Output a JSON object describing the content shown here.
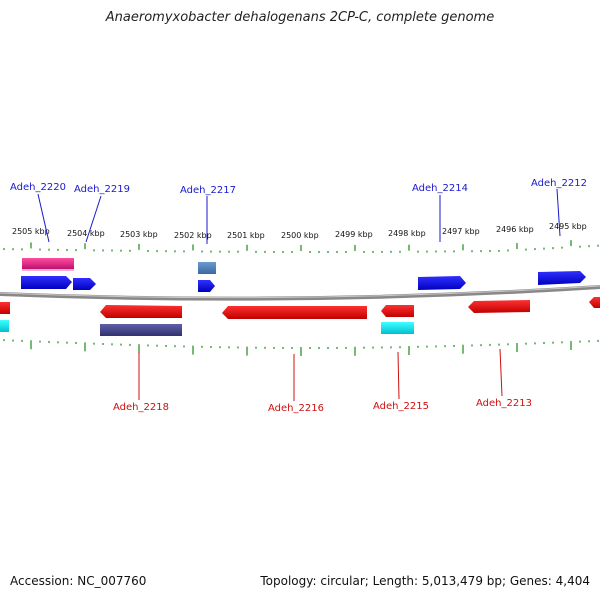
{
  "title": "Anaeromyxobacter dehalogenans 2CP-C, complete genome",
  "accession_text": "Accession: NC_007760",
  "summary_text": "Topology: circular; Length: 5,013,479 bp; Genes: 4,404",
  "scale_labels": [
    "2505 kbp",
    "2504 kbp",
    "2503 kbp",
    "2502 kbp",
    "2501 kbp",
    "2500 kbp",
    "2499 kbp",
    "2498 kbp",
    "2497 kbp",
    "2496 kbp",
    "2495 kbp"
  ],
  "gene_labels_top": [
    "Adeh_2220",
    "Adeh_2219",
    "Adeh_2217",
    "Adeh_2214",
    "Adeh_2212"
  ],
  "gene_labels_bottom": [
    "Adeh_2218",
    "Adeh_2216",
    "Adeh_2215",
    "Adeh_2213"
  ],
  "colors": {
    "forward": "#1010e0",
    "reverse": "#e01010",
    "label_top": "#1a1acc",
    "label_bottom": "#cc1010",
    "tick": "#1a8a1a",
    "backbone": "#808080"
  }
}
